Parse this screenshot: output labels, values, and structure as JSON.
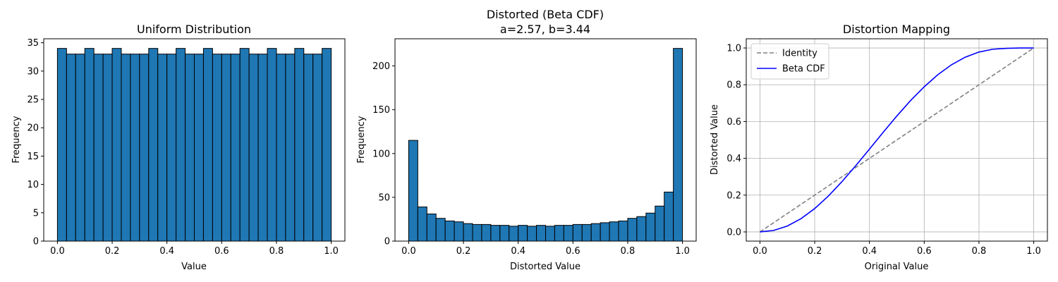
{
  "chart_data": [
    {
      "type": "bar",
      "title": "Uniform Distribution",
      "xlabel": "Value",
      "ylabel": "Frequency",
      "xlim": [
        -0.05,
        1.05
      ],
      "ylim": [
        0,
        35.7
      ],
      "bar_color": "#1f77b4",
      "edge_color": "#000000",
      "grid": false,
      "bin_range": [
        0,
        1
      ],
      "values": [
        34,
        33,
        33,
        34,
        33,
        33,
        34,
        33,
        33,
        33,
        34,
        33,
        33,
        34,
        33,
        33,
        34,
        33,
        33,
        33,
        34,
        33,
        33,
        34,
        33,
        33,
        34,
        33,
        33,
        34
      ],
      "x_ticks": [
        0.0,
        0.2,
        0.4,
        0.6,
        0.8,
        1.0
      ],
      "x_tick_labels": [
        "0.0",
        "0.2",
        "0.4",
        "0.6",
        "0.8",
        "1.0"
      ],
      "y_ticks": [
        0,
        5,
        10,
        15,
        20,
        25,
        30,
        35
      ],
      "y_tick_labels": [
        "0",
        "5",
        "10",
        "15",
        "20",
        "25",
        "30",
        "35"
      ]
    },
    {
      "type": "bar",
      "title": "Distorted (Beta CDF)",
      "subtitle": "a=2.57, b=3.44",
      "xlabel": "Distorted Value",
      "ylabel": "Frequency",
      "xlim": [
        -0.05,
        1.05
      ],
      "ylim": [
        0,
        231
      ],
      "bar_color": "#1f77b4",
      "edge_color": "#000000",
      "grid": false,
      "bin_range": [
        0,
        1
      ],
      "values": [
        115,
        39,
        31,
        26,
        23,
        22,
        20,
        19,
        19,
        18,
        18,
        17,
        18,
        17,
        18,
        17,
        18,
        18,
        19,
        19,
        20,
        21,
        22,
        23,
        26,
        28,
        32,
        40,
        56,
        220
      ],
      "x_ticks": [
        0.0,
        0.2,
        0.4,
        0.6,
        0.8,
        1.0
      ],
      "x_tick_labels": [
        "0.0",
        "0.2",
        "0.4",
        "0.6",
        "0.8",
        "1.0"
      ],
      "y_ticks": [
        0,
        50,
        100,
        150,
        200
      ],
      "y_tick_labels": [
        "0",
        "50",
        "100",
        "150",
        "200"
      ]
    },
    {
      "type": "line",
      "title": "Distortion Mapping",
      "xlabel": "Original Value",
      "ylabel": "Distorted Value",
      "xlim": [
        -0.05,
        1.05
      ],
      "ylim": [
        -0.05,
        1.05
      ],
      "grid": true,
      "legend_position": "top-left",
      "beta_a": 2.57,
      "beta_b": 3.44,
      "x_ticks": [
        0.0,
        0.2,
        0.4,
        0.6,
        0.8,
        1.0
      ],
      "x_tick_labels": [
        "0.0",
        "0.2",
        "0.4",
        "0.6",
        "0.8",
        "1.0"
      ],
      "y_ticks": [
        0.0,
        0.2,
        0.4,
        0.6,
        0.8,
        1.0
      ],
      "y_tick_labels": [
        "0.0",
        "0.2",
        "0.4",
        "0.6",
        "0.8",
        "1.0"
      ],
      "series": [
        {
          "name": "Identity",
          "color": "#808080",
          "style": "dashed",
          "x": [
            0.0,
            1.0
          ],
          "y": [
            0.0,
            1.0
          ]
        },
        {
          "name": "Beta CDF",
          "color": "#0000ff",
          "style": "solid",
          "x": [
            0.0,
            0.05,
            0.1,
            0.15,
            0.2,
            0.25,
            0.3,
            0.35,
            0.4,
            0.45,
            0.5,
            0.55,
            0.6,
            0.65,
            0.7,
            0.75,
            0.8,
            0.85,
            0.9,
            0.95,
            1.0
          ],
          "y": [
            0.0,
            0.008,
            0.032,
            0.072,
            0.127,
            0.195,
            0.274,
            0.36,
            0.45,
            0.541,
            0.63,
            0.714,
            0.789,
            0.855,
            0.909,
            0.95,
            0.978,
            0.993,
            0.998,
            1.0,
            1.0
          ]
        }
      ]
    }
  ]
}
